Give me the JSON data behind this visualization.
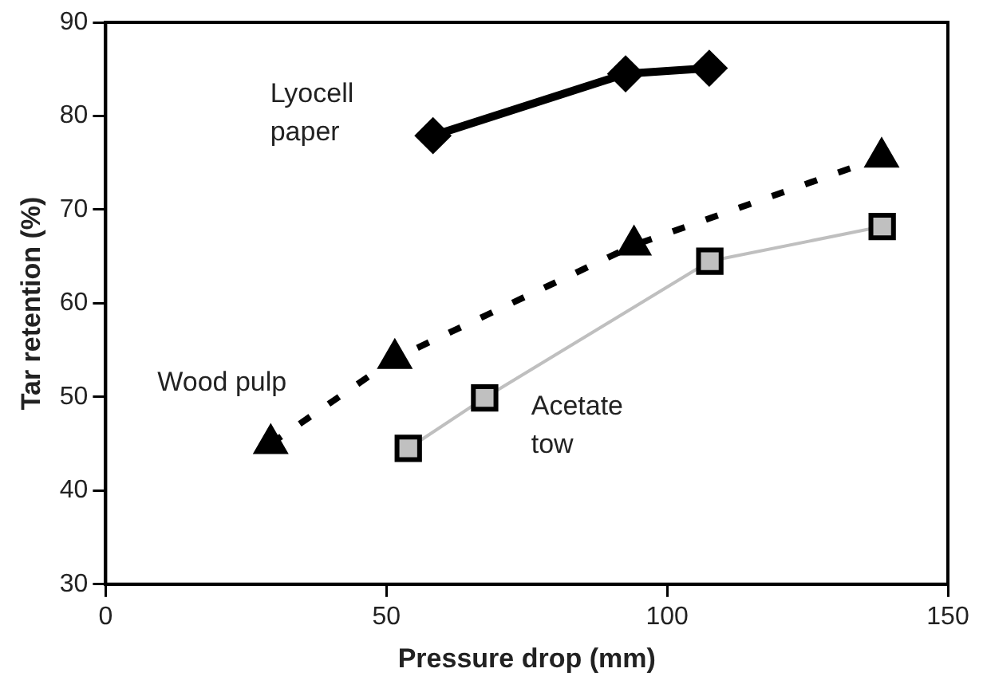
{
  "chart_data": {
    "type": "line",
    "xlabel": "Pressure drop (mm)",
    "ylabel": "Tar retention (%)",
    "xlim": [
      0,
      150
    ],
    "xticks": [
      0,
      50,
      100,
      150
    ],
    "ylim": [
      30,
      90
    ],
    "yticks": [
      30,
      40,
      50,
      60,
      70,
      80,
      90
    ],
    "grid": false,
    "legend": false,
    "series": [
      {
        "name": "Lyocell paper",
        "color": "#000000",
        "marker": "diamond",
        "line_style": "solid",
        "x": [
          58.3,
          92.6,
          107.5
        ],
        "values": [
          77.9,
          84.5,
          85.1
        ]
      },
      {
        "name": "Wood pulp",
        "color": "#000000",
        "marker": "triangle",
        "line_style": "dashed",
        "x": [
          29.4,
          51.5,
          94.1,
          138.2
        ],
        "values": [
          45,
          54.1,
          66.2,
          75.6
        ]
      },
      {
        "name": "Acetate tow",
        "color": "#c0c0c0",
        "marker": "square",
        "line_style": "solid",
        "x": [
          53.9,
          67.5,
          107.6,
          138.3
        ],
        "values": [
          44.5,
          49.9,
          64.5,
          68.2
        ]
      }
    ]
  }
}
